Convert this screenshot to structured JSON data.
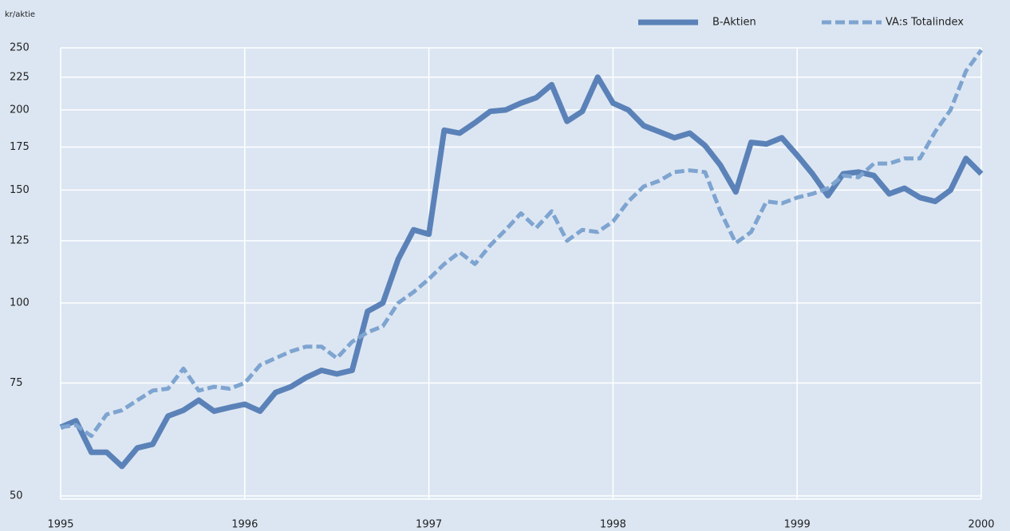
{
  "chart_data": {
    "type": "line",
    "ylabel": "kr/aktie",
    "x": [
      1995,
      1995.083,
      1995.167,
      1995.25,
      1995.333,
      1995.417,
      1995.5,
      1995.583,
      1995.667,
      1995.75,
      1995.833,
      1995.917,
      1996,
      1996.083,
      1996.167,
      1996.25,
      1996.333,
      1996.417,
      1996.5,
      1996.583,
      1996.667,
      1996.75,
      1996.833,
      1996.917,
      1997,
      1997.083,
      1997.167,
      1997.25,
      1997.333,
      1997.417,
      1997.5,
      1997.583,
      1997.667,
      1997.75,
      1997.833,
      1997.917,
      1998,
      1998.083,
      1998.167,
      1998.25,
      1998.333,
      1998.417,
      1998.5,
      1998.583,
      1998.667,
      1998.75,
      1998.833,
      1998.917,
      1999,
      1999.083,
      1999.167,
      1999.25,
      1999.333,
      1999.417,
      1999.5,
      1999.583,
      1999.667,
      1999.75,
      1999.833,
      1999.917,
      2000
    ],
    "series": [
      {
        "name": "B-Aktien",
        "color": "#5b82b8",
        "style": "solid",
        "values": [
          64,
          65.5,
          58.5,
          58.5,
          55.6,
          59.4,
          60.2,
          66.6,
          68,
          70.5,
          67.8,
          68.7,
          69.5,
          67.8,
          72.5,
          74,
          76.5,
          78.5,
          77.5,
          78.5,
          97,
          100,
          117,
          130,
          128,
          186,
          184,
          191,
          199,
          200,
          205,
          209,
          219,
          192,
          199,
          225,
          205,
          200,
          189,
          185,
          181,
          184,
          176,
          164,
          149,
          178,
          177,
          181,
          170,
          159,
          147,
          159,
          160,
          158,
          148,
          151,
          146,
          144,
          150,
          168,
          159
        ]
      },
      {
        "name": "VA:s Totalindex",
        "color": "#7ea4d0",
        "style": "dashed",
        "values": [
          64,
          64.5,
          62,
          67,
          68,
          70.5,
          73,
          73.5,
          79,
          73,
          74,
          73.5,
          75,
          80,
          82,
          84,
          85.5,
          85.5,
          82,
          87,
          90,
          92,
          100,
          104,
          109,
          115,
          120,
          115,
          123,
          130,
          138,
          131,
          139,
          125,
          130,
          129,
          134,
          144,
          152,
          155,
          160,
          161,
          160,
          139,
          124,
          129,
          144,
          143,
          146,
          148,
          151,
          158,
          157,
          165,
          165,
          168,
          168,
          185,
          200,
          230,
          248
        ]
      }
    ],
    "xlim": [
      1995,
      2000
    ],
    "xticks": [
      1995,
      1996,
      1997,
      1998,
      1999,
      2000
    ],
    "ylim": [
      50,
      250
    ],
    "yticks": [
      50,
      75,
      100,
      125,
      150,
      175,
      200,
      225,
      250
    ],
    "log_y": true,
    "grid": true,
    "legend": "top-right",
    "background": "#dce6f2"
  }
}
